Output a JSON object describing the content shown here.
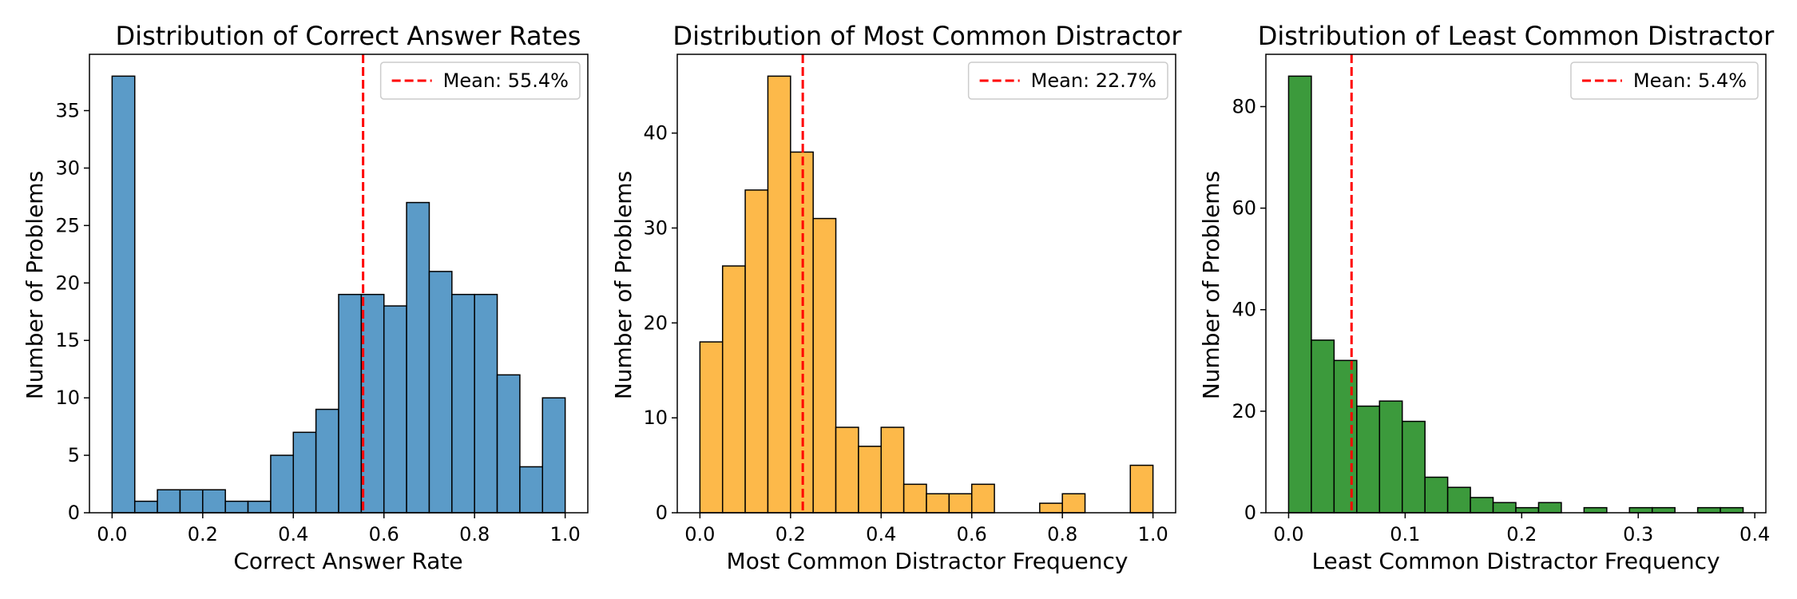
{
  "chart_data": [
    {
      "type": "bar",
      "title": "Distribution of Correct Answer Rates",
      "xlabel": "Correct Answer Rate",
      "ylabel": "Number of Problems",
      "color": "#5b9bc8",
      "bin_start": 0.0,
      "bin_width": 0.05,
      "values": [
        38,
        1,
        2,
        2,
        2,
        1,
        1,
        5,
        7,
        9,
        19,
        19,
        18,
        27,
        21,
        19,
        19,
        12,
        4,
        10
      ],
      "xlim": [
        -0.05,
        1.05
      ],
      "ylim": [
        0,
        39.9
      ],
      "xticks": [
        0.0,
        0.2,
        0.4,
        0.6,
        0.8,
        1.0
      ],
      "xtick_labels": [
        "0.0",
        "0.2",
        "0.4",
        "0.6",
        "0.8",
        "1.0"
      ],
      "yticks": [
        0,
        5,
        10,
        15,
        20,
        25,
        30,
        35
      ],
      "ytick_labels": [
        "0",
        "5",
        "10",
        "15",
        "20",
        "25",
        "30",
        "35"
      ],
      "mean_value": 0.554,
      "mean_label": "Mean: 55.4%",
      "legend_position": "top-right"
    },
    {
      "type": "bar",
      "title": "Distribution of Most Common Distractor",
      "xlabel": "Most Common Distractor Frequency",
      "ylabel": "Number of Problems",
      "color": "#fdb94a",
      "bin_start": 0.0,
      "bin_width": 0.05,
      "values": [
        18,
        26,
        34,
        46,
        38,
        31,
        9,
        7,
        9,
        3,
        2,
        2,
        3,
        0,
        0,
        1,
        2,
        0,
        0,
        5
      ],
      "xlim": [
        -0.05,
        1.05
      ],
      "ylim": [
        0,
        48.3
      ],
      "xticks": [
        0.0,
        0.2,
        0.4,
        0.6,
        0.8,
        1.0
      ],
      "xtick_labels": [
        "0.0",
        "0.2",
        "0.4",
        "0.6",
        "0.8",
        "1.0"
      ],
      "yticks": [
        0,
        10,
        20,
        30,
        40
      ],
      "ytick_labels": [
        "0",
        "10",
        "20",
        "30",
        "40"
      ],
      "mean_value": 0.227,
      "mean_label": "Mean: 22.7%",
      "legend_position": "top-right"
    },
    {
      "type": "bar",
      "title": "Distribution of Least Common Distractor",
      "xlabel": "Least Common Distractor Frequency",
      "ylabel": "Number of Problems",
      "color": "#3c9a3c",
      "bin_start": 0.0,
      "bin_width": 0.0195,
      "values": [
        86,
        34,
        30,
        21,
        22,
        18,
        7,
        5,
        3,
        2,
        1,
        2,
        0,
        1,
        0,
        1,
        1,
        0,
        1,
        1
      ],
      "xlim": [
        -0.0195,
        0.4095
      ],
      "ylim": [
        0,
        90.3
      ],
      "xticks": [
        0.0,
        0.1,
        0.2,
        0.3,
        0.4
      ],
      "xtick_labels": [
        "0.0",
        "0.1",
        "0.2",
        "0.3",
        "0.4"
      ],
      "yticks": [
        0,
        20,
        40,
        60,
        80
      ],
      "ytick_labels": [
        "0",
        "20",
        "40",
        "60",
        "80"
      ],
      "mean_value": 0.054,
      "mean_label": "Mean: 5.4%",
      "legend_position": "top-right"
    }
  ]
}
